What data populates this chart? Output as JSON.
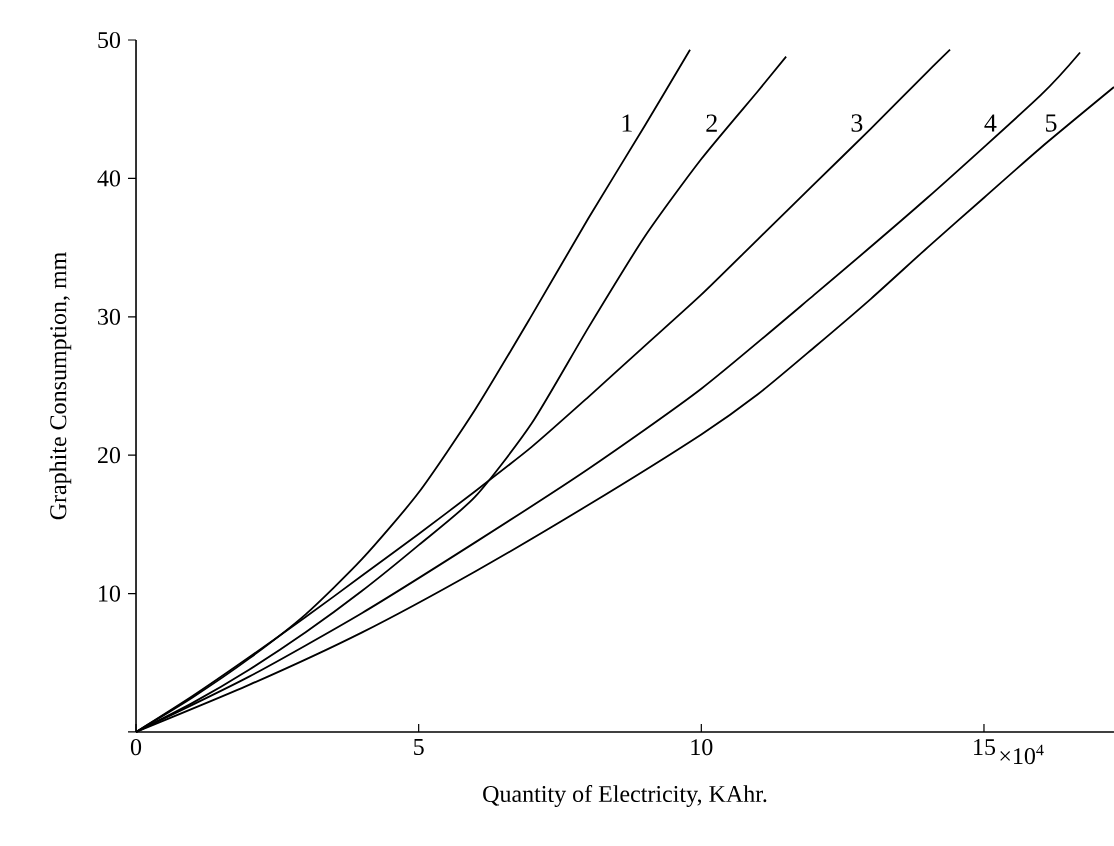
{
  "chart_data": {
    "type": "line",
    "xlabel": "Quantity of Electricity, KAhr.",
    "ylabel": "Graphite Consumption, mm",
    "xlim": [
      0,
      17.3
    ],
    "ylim": [
      0,
      50
    ],
    "xticks": [
      0,
      5,
      10,
      15
    ],
    "yticks": [
      {
        "value": 0,
        "label": null
      },
      10,
      20,
      30,
      40,
      50
    ],
    "grid": false,
    "legend": false,
    "marker": "none",
    "line_style": "solid",
    "series": [
      {
        "name": "1",
        "color": "#000000",
        "x": [
          0,
          1,
          2,
          3,
          4,
          5,
          6,
          7,
          8,
          9,
          9.8
        ],
        "values": [
          0,
          2.5,
          5.3,
          8.5,
          12.5,
          17.3,
          23.3,
          30.1,
          37.1,
          43.8,
          49.3
        ]
      },
      {
        "name": "2",
        "color": "#000000",
        "x": [
          0,
          1,
          2,
          3,
          4,
          5,
          6,
          7,
          8,
          9,
          10,
          11,
          11.5
        ],
        "values": [
          0,
          2.1,
          4.5,
          7.2,
          10.2,
          13.5,
          17,
          22.3,
          29.2,
          35.8,
          41.4,
          46.3,
          48.8
        ]
      },
      {
        "name": "3",
        "color": "#000000",
        "x": [
          0,
          1,
          2,
          3,
          4,
          5,
          6,
          7,
          8,
          9,
          10,
          11,
          12,
          13,
          14,
          14.4
        ],
        "values": [
          0,
          2.6,
          5.4,
          8.3,
          11.3,
          14.3,
          17.4,
          20.6,
          24.2,
          27.9,
          31.6,
          35.6,
          39.6,
          43.6,
          47.7,
          49.3
        ]
      },
      {
        "name": "4",
        "color": "#000000",
        "x": [
          0,
          2,
          4,
          6,
          8,
          10,
          12,
          14,
          16,
          16.7
        ],
        "values": [
          0,
          4,
          8.6,
          13.7,
          19,
          24.8,
          31.6,
          38.6,
          46,
          49.1
        ]
      },
      {
        "name": "5",
        "color": "#000000",
        "x": [
          0,
          2,
          4,
          6,
          8,
          10,
          11,
          12,
          13,
          14,
          15,
          16,
          17.3
        ],
        "values": [
          0,
          3.4,
          7.2,
          11.6,
          16.4,
          21.5,
          24.4,
          27.8,
          31.3,
          35,
          38.6,
          42.2,
          46.6
        ]
      }
    ],
    "annotations": [
      "×10$^{4}$"
    ]
  }
}
